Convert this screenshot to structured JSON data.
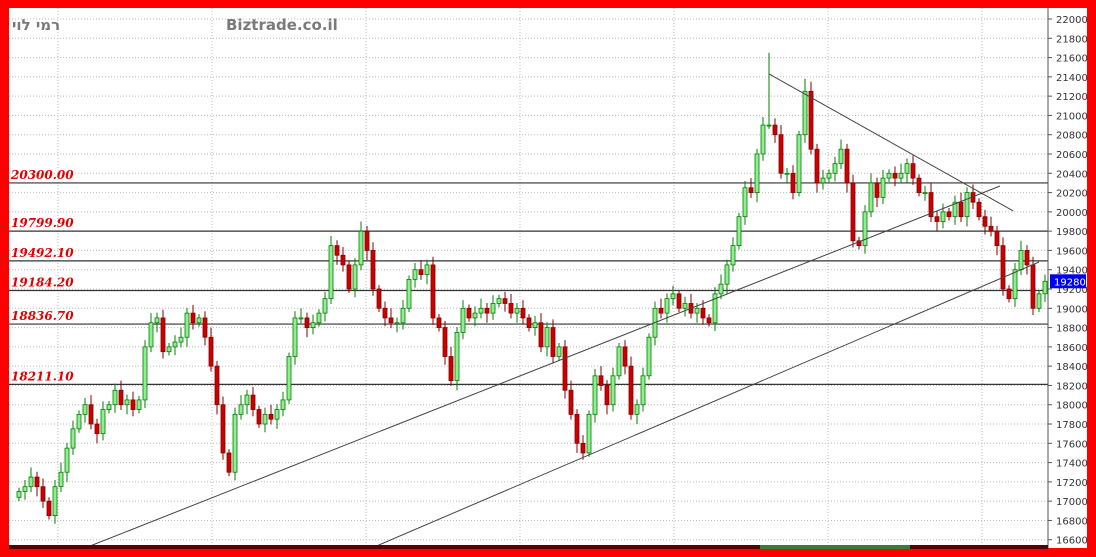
{
  "header": {
    "author": "רמי לוי",
    "site": "Biztrade.co.il"
  },
  "colors": {
    "frame": "#ff0000",
    "up_fill": "#90ee90",
    "up_stroke": "#008000",
    "down_fill": "#cc0000",
    "down_stroke": "#880000",
    "level_text": "#e00000",
    "last_price_bg": "#0000ee"
  },
  "chart_data": {
    "type": "candlestick",
    "ylim": [
      16600,
      22000
    ],
    "y_ticks": [
      "16600",
      "16800",
      "17000",
      "17200",
      "17400",
      "17600",
      "17800",
      "18000",
      "18200",
      "18400",
      "18600",
      "18800",
      "19000",
      "19200",
      "19400",
      "19600",
      "19800",
      "20000",
      "20200",
      "20400",
      "20600",
      "20800",
      "21000",
      "21200",
      "21400",
      "21600",
      "21800",
      "22000"
    ],
    "grid": true,
    "last_price": "19280",
    "levels": [
      {
        "label": "20300.00",
        "value": 20300
      },
      {
        "label": "19799.90",
        "value": 19799.9
      },
      {
        "label": "19492.10",
        "value": 19492.1
      },
      {
        "label": "19184.20",
        "value": 19184.2
      },
      {
        "label": "18836.70",
        "value": 18836.7
      },
      {
        "label": "18211.10",
        "value": 18211.1
      }
    ],
    "trendlines": [
      {
        "from": [
          11,
          16514
        ],
        "to": [
          163.5,
          20268
        ]
      },
      {
        "from": [
          58.8,
          16514
        ],
        "to": [
          170,
          19480
        ]
      },
      {
        "from": [
          125,
          21430
        ],
        "to": [
          165.7,
          20009
        ]
      }
    ],
    "closes": [
      17100,
      17150,
      17250,
      17150,
      17000,
      16850,
      17150,
      17300,
      17550,
      17750,
      17900,
      18000,
      17800,
      17700,
      17950,
      18000,
      18150,
      18000,
      18050,
      17950,
      18050,
      18600,
      18850,
      18900,
      18550,
      18600,
      18650,
      18700,
      18950,
      18850,
      18900,
      18700,
      18400,
      18000,
      17500,
      17300,
      17900,
      18000,
      18100,
      17950,
      17800,
      17900,
      17850,
      17950,
      18050,
      18500,
      18900,
      18900,
      18800,
      18850,
      18950,
      19100,
      19650,
      19550,
      19450,
      19200,
      19450,
      19800,
      19600,
      19200,
      19000,
      18900,
      18850,
      18850,
      19000,
      19300,
      19400,
      19350,
      19450,
      18900,
      18800,
      18500,
      18250,
      18750,
      19000,
      18900,
      18950,
      19000,
      18950,
      19050,
      19100,
      19050,
      18950,
      19000,
      18900,
      18800,
      18850,
      18600,
      18800,
      18500,
      18600,
      18150,
      17900,
      17600,
      17500,
      17900,
      18300,
      18200,
      18000,
      18300,
      18600,
      18400,
      17900,
      18000,
      18300,
      18700,
      19000,
      18950,
      19100,
      19150,
      19000,
      19050,
      18950,
      19000,
      18900,
      18850,
      19150,
      19250,
      19450,
      19650,
      19950,
      20250,
      20200,
      20600,
      20900,
      20900,
      20800,
      20400,
      20400,
      20200,
      20800,
      21250,
      20650,
      20300,
      20350,
      20400,
      20500,
      20650,
      20300,
      19700,
      19650,
      20000,
      20300,
      20150,
      20350,
      20400,
      20350,
      20400,
      20500,
      20350,
      20200,
      20200,
      19950,
      19900,
      20000,
      19950,
      20100,
      19950,
      20200,
      20100,
      19950,
      19850,
      19800,
      19650,
      19200,
      19100,
      19400,
      19600,
      19450,
      19000,
      19150,
      19280
    ],
    "special_highs": {
      "125": 21650,
      "131": 21380
    }
  }
}
